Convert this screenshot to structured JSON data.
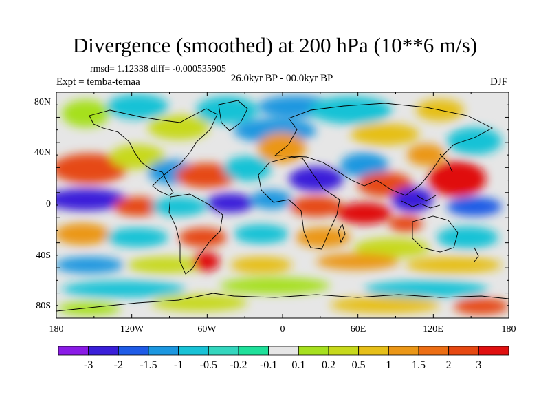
{
  "figure": {
    "title": "Divergence (smoothed) at 200 hPa (10**6 m/s)",
    "stats_line": "rmsd= 1.12338 diff= -0.000535905",
    "experiment": "Expt = temba-temaa",
    "period": "26.0kyr BP - 00.0kyr BP",
    "season": "DJF"
  },
  "axes": {
    "lat_labels": [
      "80N",
      "40N",
      "0",
      "40S",
      "80S"
    ],
    "lon_labels": [
      "180",
      "120W",
      "60W",
      "0",
      "60E",
      "120E",
      "180"
    ]
  },
  "colorbar": {
    "colors": [
      "#8a1be6",
      "#3a1fd9",
      "#1f5be6",
      "#1c97e0",
      "#19c2d6",
      "#34d6be",
      "#1fe09a",
      "#e6e6e6",
      "#a6e01f",
      "#c7d91c",
      "#e6bf19",
      "#eb9717",
      "#ec6e14",
      "#e64812",
      "#e01010"
    ],
    "labels": [
      "-3",
      "-2",
      "-1.5",
      "-1",
      "-0.5",
      "-0.2",
      "-0.1",
      "0.1",
      "0.2",
      "0.5",
      "1",
      "1.5",
      "2",
      "3"
    ]
  }
}
